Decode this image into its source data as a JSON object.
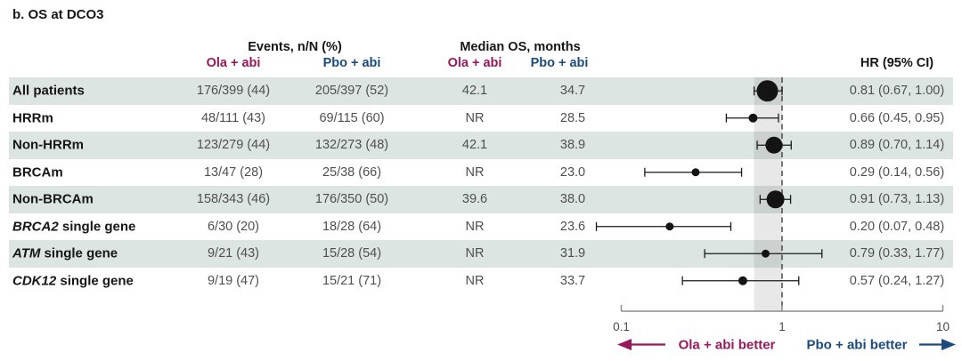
{
  "title": "b. OS at DCO3",
  "header": {
    "events_group": "Events, n/N (%)",
    "median_group": "Median OS, months",
    "ola": "Ola + abi",
    "pbo": "Pbo + abi",
    "hr": "HR (95% CI)"
  },
  "colors": {
    "ola_accent": "#98195B",
    "pbo_accent": "#1B4B7D",
    "row_shade": "#DDE5E2",
    "marker": "#141414",
    "band": "rgba(80,80,80,0.13)",
    "axis": "#8C8C8C",
    "ref_line": "#3F3F3F",
    "data_text": "#4F4F4F",
    "label_text": "#161616"
  },
  "chart_data": {
    "type": "forest",
    "x_scale": "log10",
    "x_range": [
      0.1,
      10
    ],
    "x_ticks": [
      "0.1",
      "1",
      "10"
    ],
    "reference_line": 1,
    "shaded_band": [
      0.67,
      1.0
    ],
    "legend_left": "Ola + abi better",
    "legend_right": "Pbo + abi better",
    "rows": [
      {
        "gene_italic": "",
        "label": "All patients",
        "events_ola": "176/399 (44)",
        "events_pbo": "205/397 (52)",
        "median_ola": "42.1",
        "median_pbo": "34.7",
        "hr": 0.81,
        "ci_low": 0.67,
        "ci_high": 1.0,
        "hr_text": "0.81 (0.67, 1.00)",
        "marker_r": 12
      },
      {
        "gene_italic": "",
        "label": "HRRm",
        "events_ola": "48/111 (43)",
        "events_pbo": "69/115 (60)",
        "median_ola": "NR",
        "median_pbo": "28.5",
        "hr": 0.66,
        "ci_low": 0.45,
        "ci_high": 0.95,
        "hr_text": "0.66 (0.45, 0.95)",
        "marker_r": 5
      },
      {
        "gene_italic": "",
        "label": "Non-HRRm",
        "events_ola": "123/279 (44)",
        "events_pbo": "132/273 (48)",
        "median_ola": "42.1",
        "median_pbo": "38.9",
        "hr": 0.89,
        "ci_low": 0.7,
        "ci_high": 1.14,
        "hr_text": "0.89 (0.70, 1.14)",
        "marker_r": 9.5
      },
      {
        "gene_italic": "",
        "label": "BRCAm",
        "events_ola": "13/47 (28)",
        "events_pbo": "25/38 (66)",
        "median_ola": "NR",
        "median_pbo": "23.0",
        "hr": 0.29,
        "ci_low": 0.14,
        "ci_high": 0.56,
        "hr_text": "0.29 (0.14, 0.56)",
        "marker_r": 4.5
      },
      {
        "gene_italic": "",
        "label": "Non-BRCAm",
        "events_ola": "158/343 (46)",
        "events_pbo": "176/350 (50)",
        "median_ola": "39.6",
        "median_pbo": "38.0",
        "hr": 0.91,
        "ci_low": 0.73,
        "ci_high": 1.13,
        "hr_text": "0.91 (0.73, 1.13)",
        "marker_r": 10
      },
      {
        "gene_italic": "BRCA2",
        "label": " single gene",
        "events_ola": "6/30 (20)",
        "events_pbo": "18/28 (64)",
        "median_ola": "NR",
        "median_pbo": "23.6",
        "hr": 0.2,
        "ci_low": 0.07,
        "ci_high": 0.48,
        "hr_text": "0.20 (0.07, 0.48)",
        "marker_r": 4.5
      },
      {
        "gene_italic": "ATM",
        "label": " single gene",
        "events_ola": "9/21 (43)",
        "events_pbo": "15/28 (54)",
        "median_ola": "NR",
        "median_pbo": "31.9",
        "hr": 0.79,
        "ci_low": 0.33,
        "ci_high": 1.77,
        "hr_text": "0.79 (0.33, 1.77)",
        "marker_r": 4.5
      },
      {
        "gene_italic": "CDK12",
        "label": " single gene",
        "events_ola": "9/19 (47)",
        "events_pbo": "15/21 (71)",
        "median_ola": "NR",
        "median_pbo": "33.7",
        "hr": 0.57,
        "ci_low": 0.24,
        "ci_high": 1.27,
        "hr_text": "0.57 (0.24, 1.27)",
        "marker_r": 5
      }
    ]
  }
}
